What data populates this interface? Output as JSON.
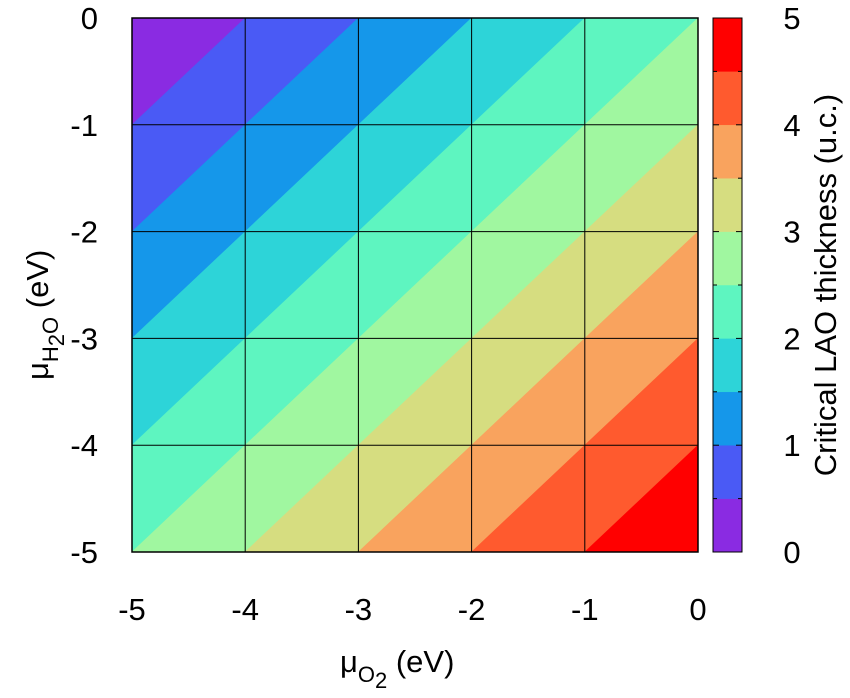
{
  "chart_data": {
    "type": "heatmap",
    "x": {
      "ticks": [
        "-5",
        "-4",
        "-3",
        "-2",
        "-1",
        "0"
      ],
      "range": [
        -5,
        0
      ]
    },
    "y": {
      "ticks": [
        "0",
        "-1",
        "-2",
        "-3",
        "-4",
        "-5"
      ],
      "range": [
        -5,
        0
      ]
    },
    "xlabel": {
      "symbol": "μ",
      "sub": "O",
      "subsub": "2",
      "unit": " (eV)"
    },
    "ylabel": {
      "symbol": "μ",
      "sub": "H",
      "subsub": "2",
      "sub2": "O",
      "unit": " (eV)"
    },
    "grid": true,
    "field": "z = 2.5 + 0.5*μO2 - 0.5*μH2O (approx. level lines as read from the contours)",
    "contour_levels": [
      0,
      0.5,
      1,
      1.5,
      2,
      2.5,
      3,
      3.5,
      4,
      4.5,
      5
    ],
    "colorbar": {
      "label": "Critical LAO thickness (u.c.)",
      "range": [
        0,
        5
      ],
      "ticks": [
        "0",
        "1",
        "2",
        "3",
        "4",
        "5"
      ],
      "colors": [
        "#8a2be2",
        "#4a5af5",
        "#1597ea",
        "#2dd4d8",
        "#5ef5c0",
        "#a0f7a0",
        "#d6dd80",
        "#f9a35e",
        "#ff5a2e",
        "#ff0000"
      ]
    }
  }
}
